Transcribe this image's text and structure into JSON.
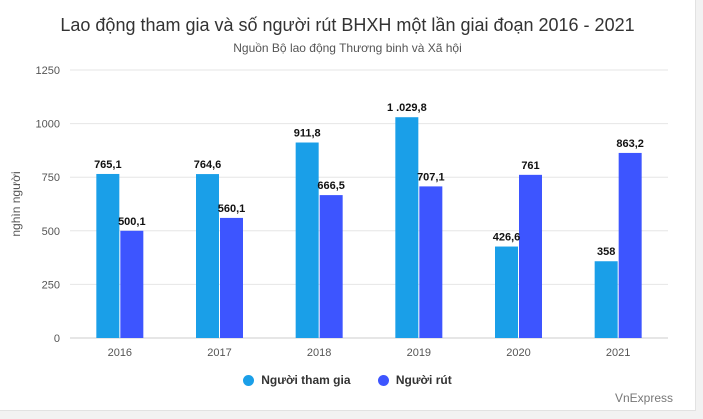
{
  "chart_data": {
    "type": "bar",
    "title": "Lao động tham gia và số người rút BHXH một lần giai đoạn 2016 - 2021",
    "subtitle": "Nguồn Bộ lao động Thương binh và Xã hội",
    "ylabel": "nghìn người",
    "xlabel": "",
    "categories": [
      "2016",
      "2017",
      "2018",
      "2019",
      "2020",
      "2021"
    ],
    "series": [
      {
        "name": "Người tham gia",
        "color": "#1a9fe8",
        "values": [
          765.1,
          764.6,
          911.8,
          1029.8,
          426.6,
          358
        ],
        "labels": [
          "765,1",
          "764,6",
          "911,8",
          "1 .029,8",
          "426,6",
          "358"
        ]
      },
      {
        "name": "Người rút",
        "color": "#3d55ff",
        "values": [
          500.1,
          560.1,
          666.5,
          707.1,
          761,
          863.2
        ],
        "labels": [
          "500,1",
          "560,1",
          "666,5",
          "707,1",
          "761",
          "863,2"
        ]
      }
    ],
    "ylim": [
      0,
      1250
    ],
    "yticks": [
      0,
      250,
      500,
      750,
      1000,
      1250
    ],
    "grid": true,
    "legend": "bottom"
  },
  "credit": "VnExpress"
}
